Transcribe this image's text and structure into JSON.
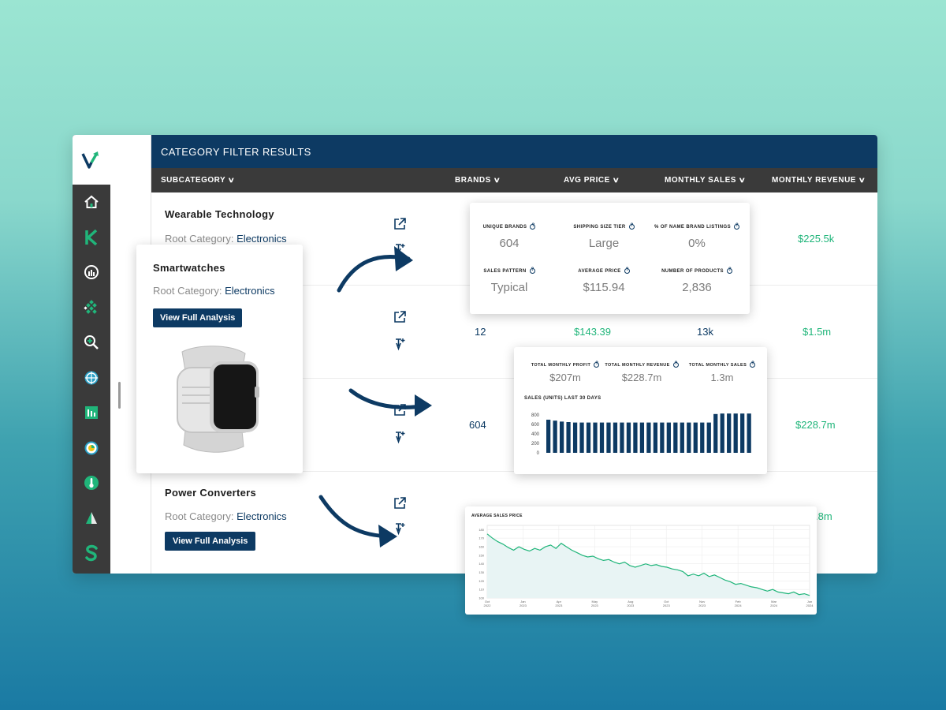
{
  "app": {
    "title": "CATEGORY FILTER RESULTS",
    "columns": [
      {
        "label": "SUBCATEGORY"
      },
      {
        "label": "BRANDS"
      },
      {
        "label": "AVG PRICE"
      },
      {
        "label": "MONTHLY SALES"
      },
      {
        "label": "MONTHLY REVENUE"
      }
    ],
    "sidebar_icons": [
      "home-icon",
      "k-logo-icon",
      "gauge-icon",
      "diamond-grid-icon",
      "magnifier-icon",
      "crosshair-icon",
      "bar-chart-icon",
      "donut-icon",
      "thermometer-icon",
      "sail-icon",
      "s-logo-icon"
    ],
    "root_label": "Root Category:",
    "rows": [
      {
        "title": "Wearable Technology",
        "root": "Electronics",
        "brands": "",
        "avg_price": "",
        "monthly_sales": "",
        "monthly_revenue": "$225.5k"
      },
      {
        "title": "",
        "root": "",
        "brands": "12",
        "avg_price": "$143.39",
        "monthly_sales": "13k",
        "monthly_revenue": "$1.5m"
      },
      {
        "title": "",
        "root": "",
        "brands": "604",
        "avg_price": "",
        "monthly_sales": "",
        "monthly_revenue": "$228.7m"
      },
      {
        "title": "Power Converters",
        "root": "Electronics",
        "button": "View Full Analysis",
        "brands": "",
        "avg_price": "",
        "monthly_sales": "",
        "monthly_revenue": ".8m"
      }
    ]
  },
  "smartwatch_card": {
    "title": "Smartwatches",
    "root_label": "Root Category:",
    "root": "Electronics",
    "button": "View Full Analysis"
  },
  "stats_card": {
    "items": [
      {
        "label": "UNIQUE BRANDS",
        "value": "604"
      },
      {
        "label": "SHIPPING SIZE TIER",
        "value": "Large"
      },
      {
        "label": "% OF NAME BRAND LISTINGS",
        "value": "0%"
      },
      {
        "label": "SALES PATTERN",
        "value": "Typical"
      },
      {
        "label": "AVERAGE PRICE",
        "value": "$115.94"
      },
      {
        "label": "NUMBER OF PRODUCTS",
        "value": "2,836"
      }
    ]
  },
  "sales_card": {
    "items": [
      {
        "label": "TOTAL MONTHLY PROFIT",
        "value": "$207m"
      },
      {
        "label": "TOTAL MONTHLY REVENUE",
        "value": "$228.7m"
      },
      {
        "label": "TOTAL MONTHLY SALES",
        "value": "1.3m"
      }
    ]
  },
  "colors": {
    "navy": "#0d3a63",
    "green": "#20b57a",
    "dark": "#3a3a3a"
  },
  "chart_data": [
    {
      "type": "bar",
      "title": "SALES (UNITS) LAST 30 DAYS",
      "yticks": [
        "800",
        "600",
        "400",
        "200",
        "0"
      ],
      "ylim": [
        0,
        800
      ],
      "values": [
        700,
        680,
        660,
        650,
        640,
        640,
        640,
        640,
        640,
        640,
        640,
        640,
        640,
        640,
        640,
        640,
        640,
        640,
        640,
        640,
        640,
        640,
        640,
        640,
        640,
        820,
        830,
        830,
        830,
        830,
        830
      ],
      "grid": false
    },
    {
      "type": "line",
      "title": "AVERAGE SALES PRICE",
      "yticks": [
        "180",
        "170",
        "160",
        "150",
        "140",
        "130",
        "120",
        "110",
        "100"
      ],
      "ylim": [
        100,
        185
      ],
      "xticks": [
        {
          "month": "Oct",
          "year": "2022"
        },
        {
          "month": "Jan",
          "year": "2023"
        },
        {
          "month": "Apr",
          "year": "2023"
        },
        {
          "month": "May",
          "year": "2023"
        },
        {
          "month": "Aug",
          "year": "2023"
        },
        {
          "month": "Oct",
          "year": "2023"
        },
        {
          "month": "Nov",
          "year": "2023"
        },
        {
          "month": "Feb",
          "year": "2024"
        },
        {
          "month": "Mar",
          "year": "2024"
        },
        {
          "month": "Jun",
          "year": "2024"
        }
      ],
      "values": [
        175,
        170,
        166,
        163,
        159,
        156,
        160,
        157,
        155,
        158,
        156,
        160,
        162,
        158,
        164,
        160,
        156,
        153,
        150,
        148,
        149,
        146,
        144,
        145,
        142,
        140,
        142,
        138,
        136,
        138,
        140,
        138,
        139,
        137,
        136,
        134,
        133,
        131,
        126,
        128,
        126,
        129,
        125,
        127,
        124,
        121,
        119,
        116,
        117,
        115,
        113,
        112,
        110,
        108,
        110,
        107,
        106,
        105,
        107,
        104,
        105,
        103
      ],
      "grid": true
    }
  ]
}
